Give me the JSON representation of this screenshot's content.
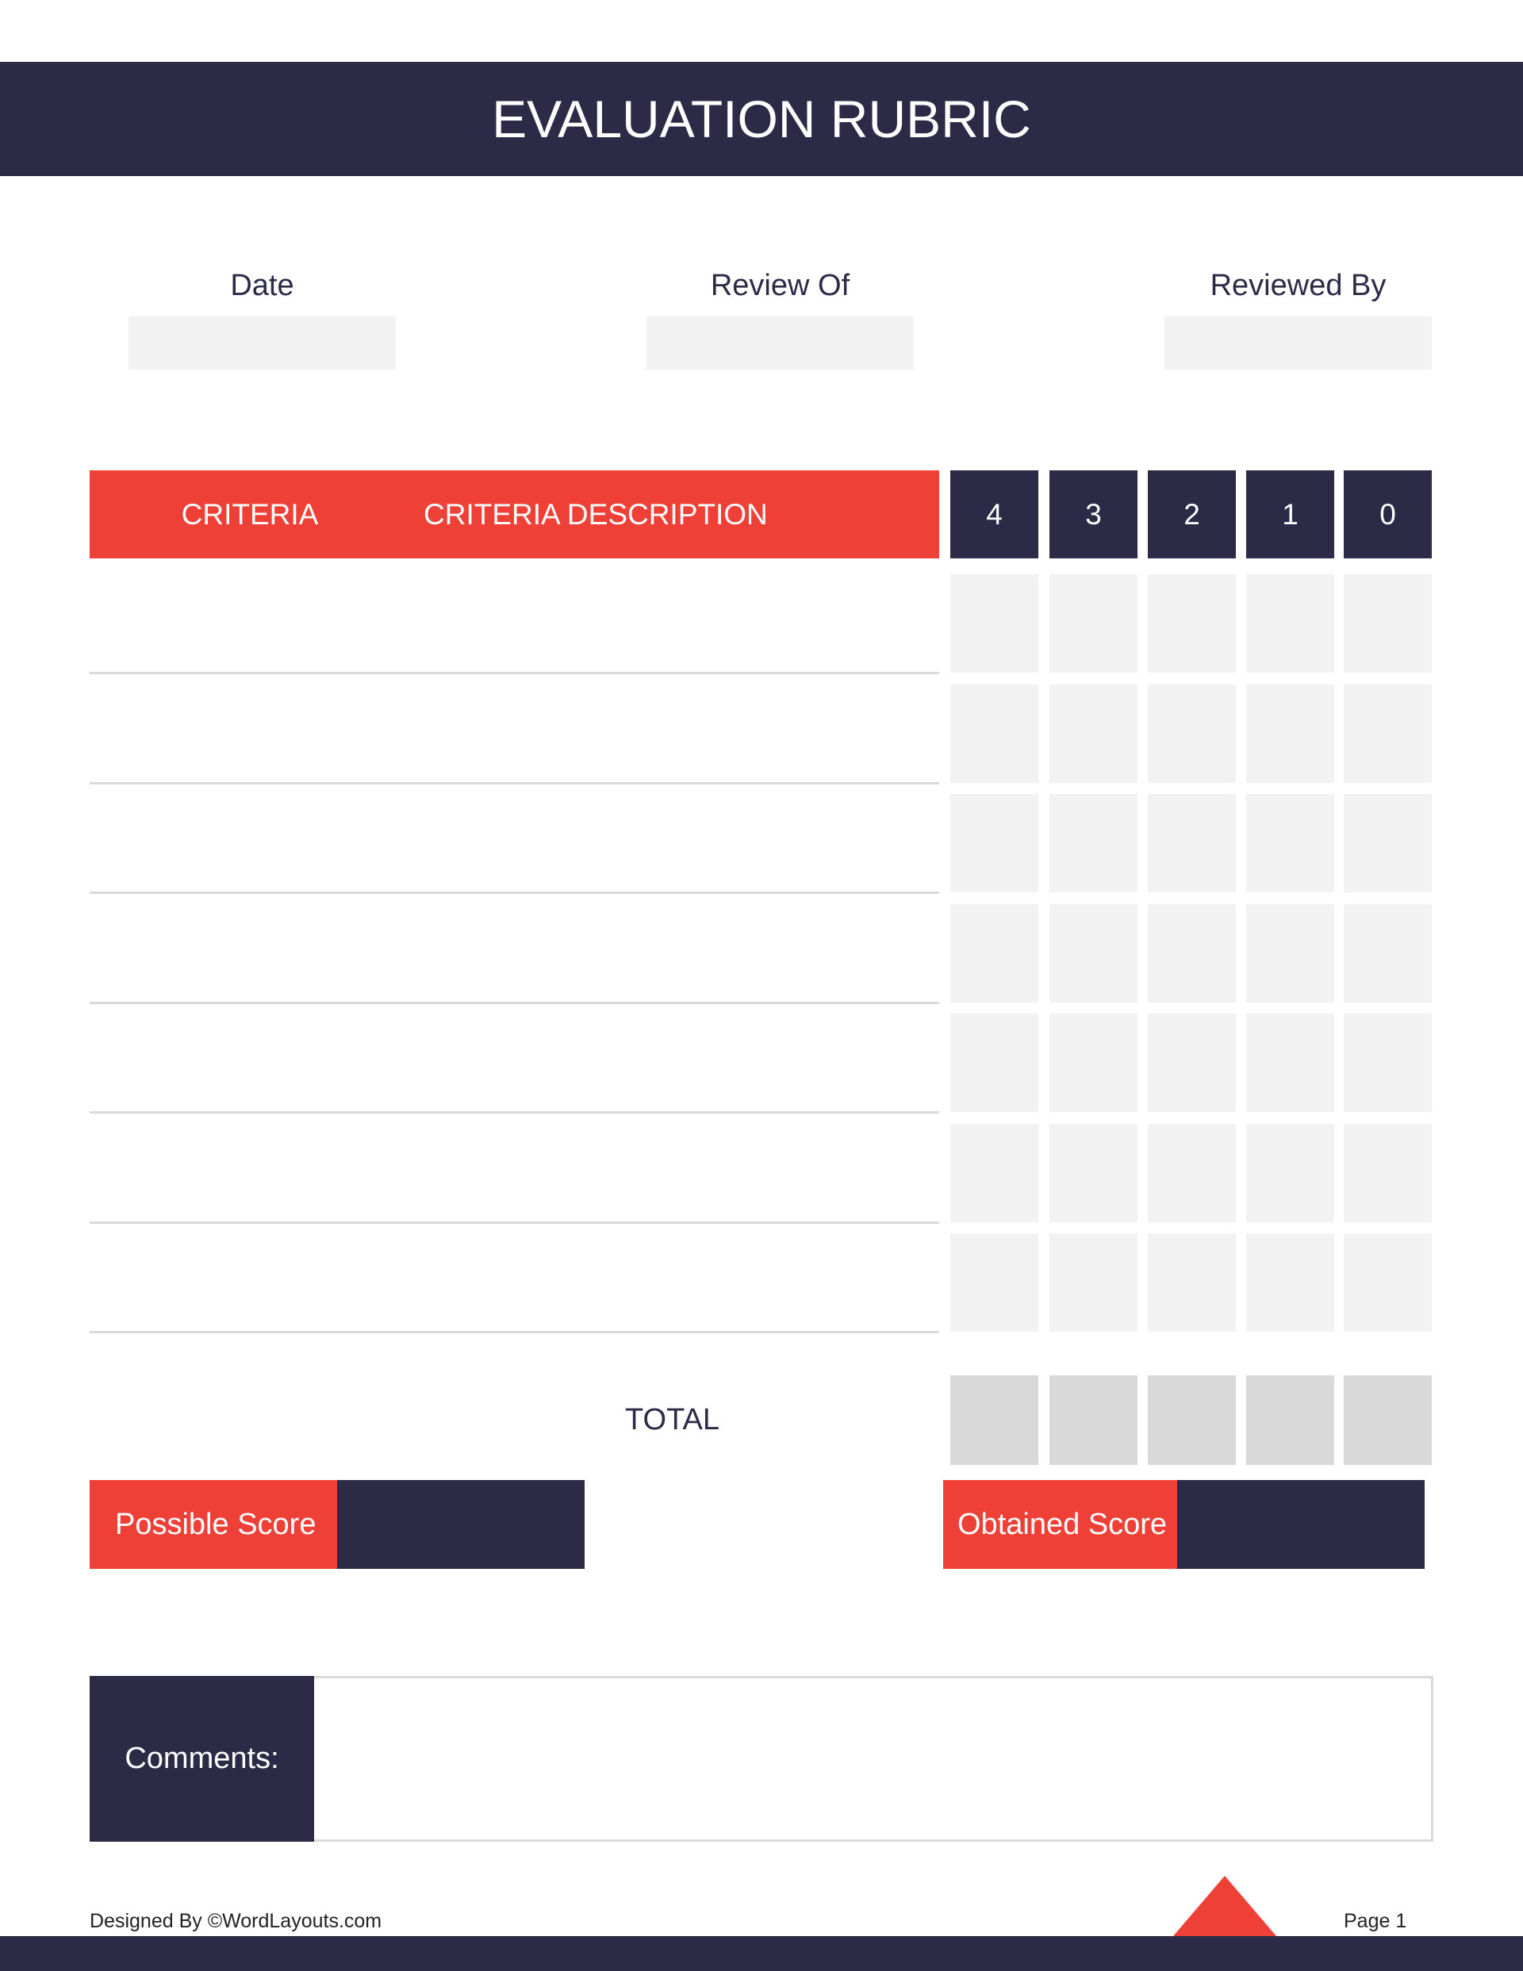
{
  "header": {
    "title": "EVALUATION RUBRIC"
  },
  "fields": [
    "Date",
    "Review Of",
    "Reviewed By"
  ],
  "table": {
    "headers": [
      "CRITERIA",
      "CRITERIA DESCRIPTION"
    ],
    "score_columns": [
      "4",
      "3",
      "2",
      "1",
      "0"
    ],
    "total_label": "TOTAL"
  },
  "scores": {
    "possible": "Possible Score",
    "obtained": "Obtained Score"
  },
  "comments": {
    "label": "Comments:"
  },
  "footer": {
    "credit": "Designed By ©WordLayouts.com",
    "page": "Page 1"
  }
}
